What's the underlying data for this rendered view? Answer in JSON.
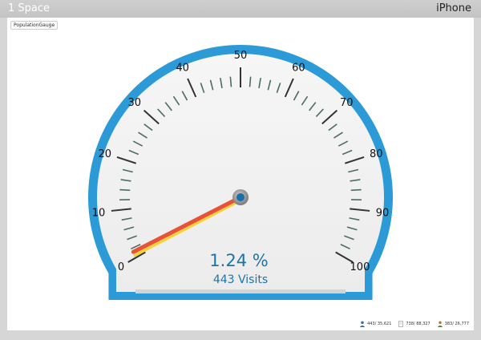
{
  "window": {
    "title": "1 Space",
    "device": "iPhone"
  },
  "widget": {
    "tag": "PopulationGauge"
  },
  "gauge": {
    "min": 0,
    "max": 100,
    "tick_labels": [
      "0",
      "10",
      "20",
      "30",
      "40",
      "50",
      "60",
      "70",
      "80",
      "90",
      "100"
    ],
    "value": 1.24,
    "value_text": "1.24 %",
    "visits_text": "443 Visits",
    "colors": {
      "ring": "#2b9ad6",
      "face": "#f2f2f2",
      "needle": "#e8513a",
      "needle_shadow": "#f5d33a",
      "hub": "#1a6fa8",
      "readout": "#1e74a8",
      "major_tick": "#333333",
      "minor_tick": "#4a6e62"
    }
  },
  "footer": {
    "stats": [
      {
        "icon": "users-icon",
        "text": "443/ 35,621"
      },
      {
        "icon": "pages-icon",
        "text": "738/ 88,327"
      },
      {
        "icon": "visitors-icon",
        "text": "383/ 26,777"
      }
    ]
  }
}
